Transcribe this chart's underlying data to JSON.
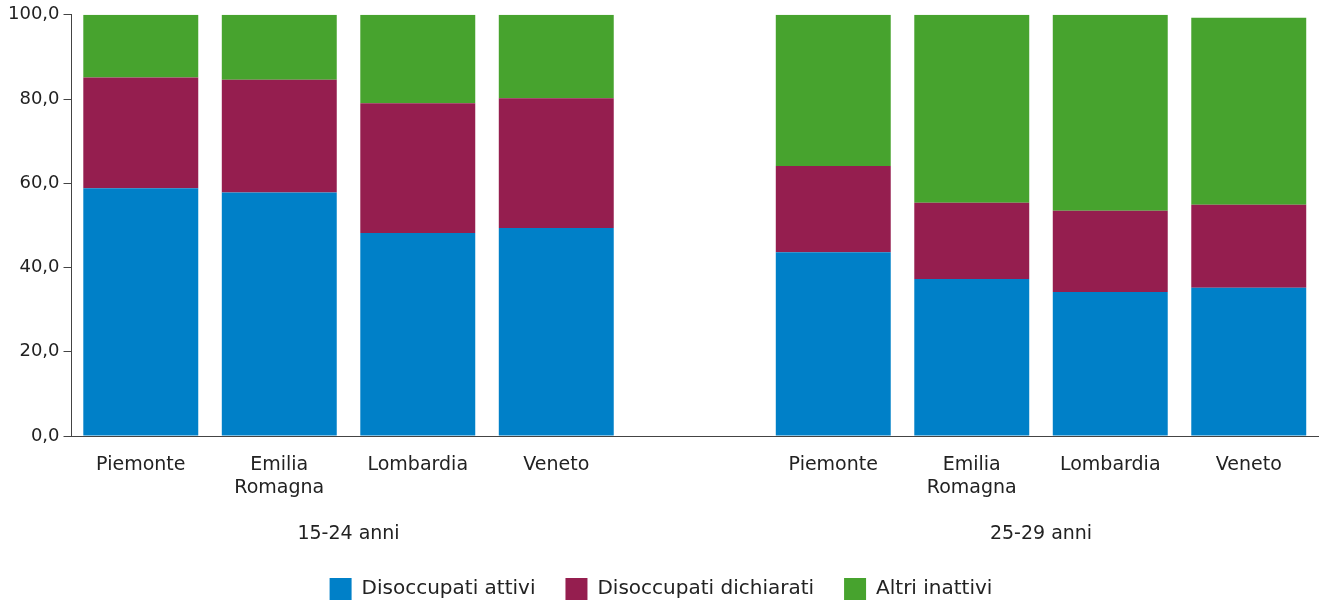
{
  "chart_data": {
    "type": "bar",
    "stacked": true,
    "categories": [
      "Piemonte",
      "Emilia Romagna",
      "Lombardia",
      "Veneto",
      null,
      "Piemonte",
      "Emilia Romagna",
      "Lombardia",
      "Veneto"
    ],
    "series": [
      {
        "name": "Disoccupati attivi",
        "color": "#0080c8",
        "values": [
          58.8,
          57.8,
          48.2,
          49.4,
          null,
          43.6,
          37.3,
          34.2,
          35.2
        ]
      },
      {
        "name": "Disoccupati dichiarati",
        "color": "#951e4f",
        "values": [
          26.3,
          26.8,
          30.8,
          30.8,
          null,
          20.5,
          18.1,
          19.3,
          19.7
        ]
      },
      {
        "name": "Altri inattivi",
        "color": "#47a32e",
        "values": [
          14.9,
          15.4,
          21.0,
          19.8,
          null,
          35.9,
          44.6,
          46.5,
          44.4
        ]
      }
    ],
    "ylim": [
      0,
      100
    ],
    "yticks": [
      {
        "value": 0,
        "label": "0,0"
      },
      {
        "value": 20,
        "label": "20,0"
      },
      {
        "value": 40,
        "label": "40,0"
      },
      {
        "value": 60,
        "label": "60,0"
      },
      {
        "value": 80,
        "label": "80,0"
      },
      {
        "value": 100,
        "label": "100,0"
      }
    ],
    "annotations": [
      "15-24 anni",
      "25-29 anni"
    ],
    "grid": false,
    "legend": "bottom"
  }
}
